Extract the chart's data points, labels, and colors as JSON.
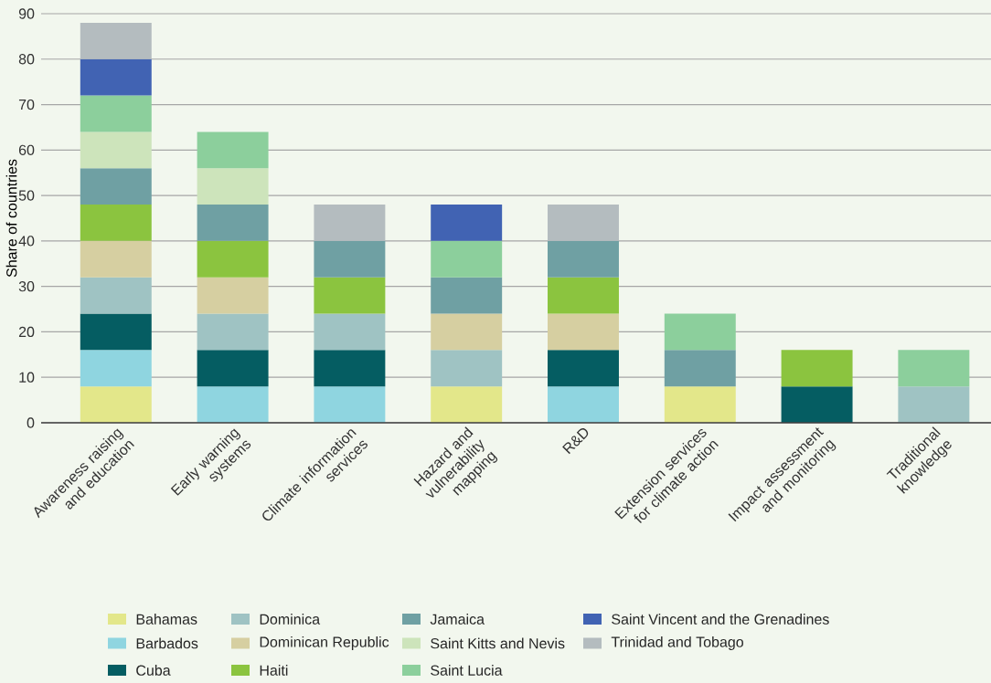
{
  "chart_data": {
    "type": "bar",
    "stacked": true,
    "ylabel": "Share of countries",
    "ylim": [
      0,
      90
    ],
    "yticks": [
      0,
      10,
      20,
      30,
      40,
      50,
      60,
      70,
      80,
      90
    ],
    "grid": "y",
    "legend": "bottom",
    "categories": [
      "Awareness raising and education",
      "Early warning systems",
      "Climate information services",
      "Hazard and vulnerability mapping",
      "R&D",
      "Extension services for climate action",
      "Impact assessment and monitoring",
      "Traditional knowledge"
    ],
    "series": [
      {
        "name": "Bahamas",
        "color": "#e3e78a",
        "values": [
          8,
          null,
          null,
          8,
          null,
          8,
          null,
          null
        ]
      },
      {
        "name": "Barbados",
        "color": "#8fd5e0",
        "values": [
          8,
          8,
          8,
          null,
          8,
          null,
          null,
          null
        ]
      },
      {
        "name": "Cuba",
        "color": "#055d62",
        "values": [
          8,
          8,
          8,
          null,
          8,
          null,
          8,
          null
        ]
      },
      {
        "name": "Dominica",
        "color": "#9fc3c3",
        "values": [
          8,
          8,
          8,
          8,
          null,
          null,
          null,
          8
        ]
      },
      {
        "name": "Dominican Republic",
        "color": "#d6cfa1",
        "values": [
          8,
          8,
          null,
          8,
          8,
          null,
          null,
          null
        ]
      },
      {
        "name": "Haiti",
        "color": "#8bc43f",
        "values": [
          8,
          8,
          8,
          null,
          8,
          null,
          8,
          null
        ]
      },
      {
        "name": "Jamaica",
        "color": "#6fa0a3",
        "values": [
          8,
          8,
          8,
          8,
          8,
          8,
          null,
          null
        ]
      },
      {
        "name": "Saint Kitts and Nevis",
        "color": "#cde4bb",
        "values": [
          8,
          8,
          null,
          null,
          null,
          null,
          null,
          null
        ]
      },
      {
        "name": "Saint Lucia",
        "color": "#8ccf9c",
        "values": [
          8,
          8,
          null,
          8,
          null,
          8,
          null,
          8
        ]
      },
      {
        "name": "Saint Vincent and the Grenadines",
        "color": "#4163b3",
        "values": [
          8,
          null,
          null,
          8,
          null,
          null,
          null,
          null
        ]
      },
      {
        "name": "Trinidad and Tobago",
        "color": "#b4bcbf",
        "values": [
          8,
          null,
          8,
          null,
          8,
          null,
          null,
          null
        ]
      }
    ]
  }
}
